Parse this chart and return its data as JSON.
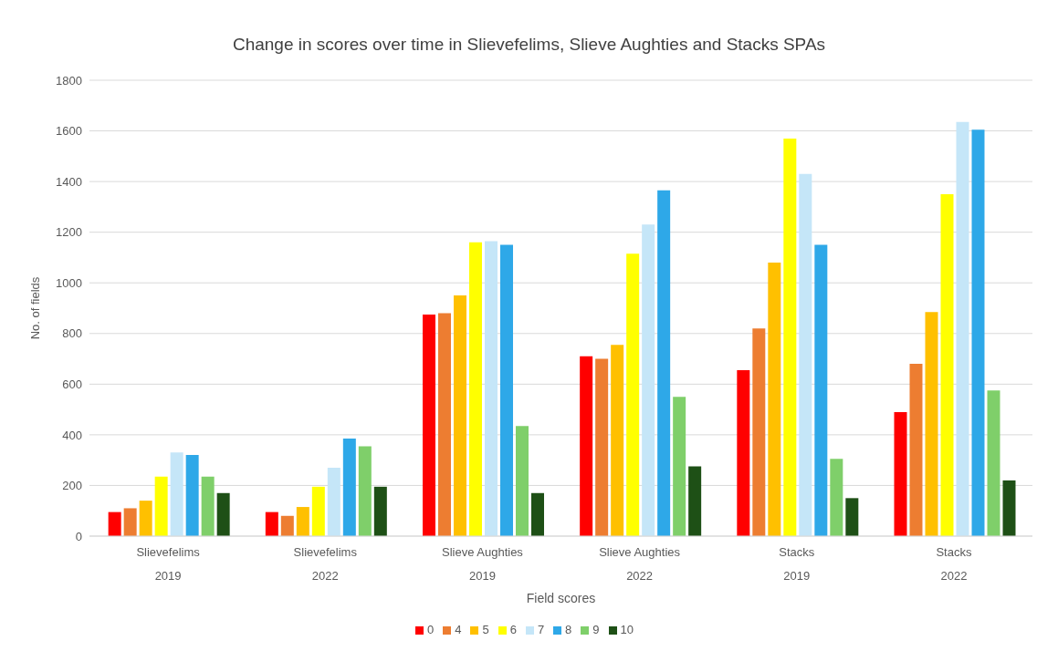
{
  "chart_data": {
    "type": "bar",
    "title": "Change in scores over time in Slievefelims, Slieve Aughties and Stacks SPAs",
    "xlabel": "Field scores",
    "ylabel": "No. of fields",
    "categories": [
      "Slievefelims\n2019",
      "Slievefelims\n2022",
      "Slieve Aughties\n2019",
      "Slieve Aughties\n2022",
      "Stacks\n2019",
      "Stacks\n2022"
    ],
    "series": [
      {
        "name": "0",
        "color": "#ff0000",
        "values": [
          95,
          95,
          875,
          710,
          655,
          490
        ]
      },
      {
        "name": "4",
        "color": "#ed7d31",
        "values": [
          110,
          80,
          880,
          700,
          820,
          680
        ]
      },
      {
        "name": "5",
        "color": "#ffc000",
        "values": [
          140,
          115,
          950,
          755,
          1080,
          885
        ]
      },
      {
        "name": "6",
        "color": "#ffff00",
        "values": [
          235,
          195,
          1160,
          1115,
          1570,
          1350
        ]
      },
      {
        "name": "7",
        "color": "#c5e6f8",
        "values": [
          330,
          270,
          1165,
          1230,
          1430,
          1635
        ]
      },
      {
        "name": "8",
        "color": "#2ea8e8",
        "values": [
          320,
          385,
          1150,
          1365,
          1150,
          1605
        ]
      },
      {
        "name": "9",
        "color": "#7fcf6a",
        "values": [
          235,
          355,
          435,
          550,
          305,
          575
        ]
      },
      {
        "name": "10",
        "color": "#1e5016",
        "values": [
          170,
          195,
          170,
          275,
          150,
          220
        ]
      }
    ],
    "ylim": [
      0,
      1800
    ],
    "yticks": [
      0,
      200,
      400,
      600,
      800,
      1000,
      1200,
      1400,
      1600,
      1800
    ],
    "grid": "y",
    "legend": "bottom"
  }
}
